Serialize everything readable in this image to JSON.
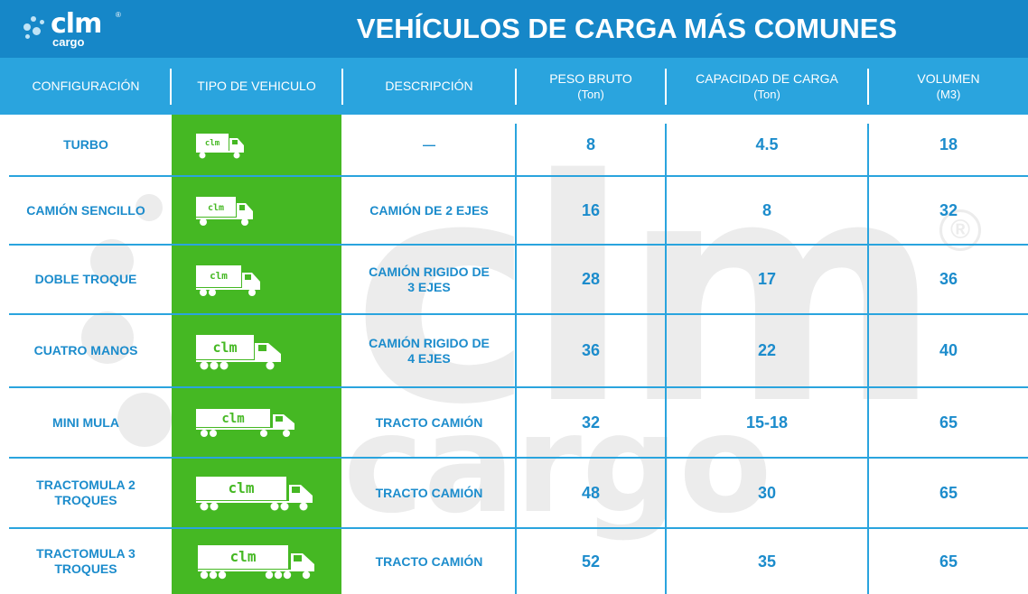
{
  "header": {
    "logo": {
      "text": "clm",
      "sub": "cargo",
      "reg": "®"
    },
    "title": "VEHÍCULOS DE CARGA MÁS COMUNES"
  },
  "columns": [
    {
      "label": "CONFIGURACIÓN",
      "unit": ""
    },
    {
      "label": "TIPO DE VEHICULO",
      "unit": ""
    },
    {
      "label": "DESCRIPCIÓN",
      "unit": ""
    },
    {
      "label": "PESO BRUTO",
      "unit": "(Ton)"
    },
    {
      "label": "CAPACIDAD DE CARGA",
      "unit": "(Ton)"
    },
    {
      "label": "VOLUMEN",
      "unit": "(M3)"
    }
  ],
  "rows": [
    {
      "config": "TURBO",
      "truck_label": "clm",
      "description": "—",
      "peso_bruto": "8",
      "capacidad": "4.5",
      "volumen": "18"
    },
    {
      "config": "CAMIÓN SENCILLO",
      "truck_label": "clm",
      "description": "CAMIÓN DE 2 EJES",
      "peso_bruto": "16",
      "capacidad": "8",
      "volumen": "32"
    },
    {
      "config": "DOBLE TROQUE",
      "truck_label": "clm",
      "description": "CAMIÓN RIGIDO DE 3 EJES",
      "peso_bruto": "28",
      "capacidad": "17",
      "volumen": "36"
    },
    {
      "config": "CUATRO MANOS",
      "truck_label": "clm",
      "description": "CAMIÓN RIGIDO DE 4 EJES",
      "peso_bruto": "36",
      "capacidad": "22",
      "volumen": "40"
    },
    {
      "config": "MINI MULA",
      "truck_label": "clm",
      "description": "TRACTO CAMIÓN",
      "peso_bruto": "32",
      "capacidad": "15-18",
      "volumen": "65"
    },
    {
      "config": "TRACTOMULA 2 TROQUES",
      "truck_label": "clm",
      "description": "TRACTO CAMIÓN",
      "peso_bruto": "48",
      "capacidad": "30",
      "volumen": "65"
    },
    {
      "config": "TRACTOMULA 3 TROQUES",
      "truck_label": "clm",
      "description": "TRACTO CAMIÓN",
      "peso_bruto": "52",
      "capacidad": "35",
      "volumen": "65"
    }
  ],
  "watermark": {
    "text": "clm",
    "sub": "cargo",
    "reg": "®"
  },
  "colors": {
    "header": "#1687c8",
    "colbar": "#2aa4de",
    "green": "#45b823",
    "text": "#1c8ccc"
  }
}
